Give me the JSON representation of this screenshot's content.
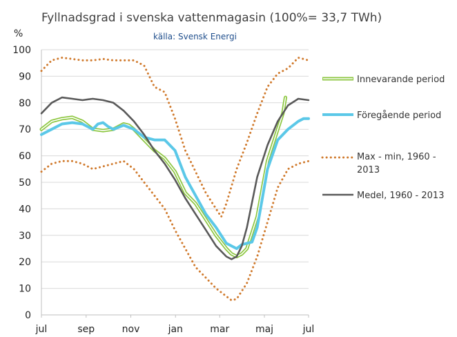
{
  "chart_data": {
    "type": "line",
    "title": "Fyllnadsgrad i svenska vattenmagasin (100%= 33,7 TWh)",
    "subtitle": "källa: Svensk Energi",
    "ylabel": "%",
    "xlabel": "",
    "ylim": [
      0,
      100
    ],
    "yticks": [
      0,
      10,
      20,
      30,
      40,
      50,
      60,
      70,
      80,
      90,
      100
    ],
    "grid": true,
    "x_categories": [
      "jul",
      "sep",
      "nov",
      "jan",
      "mar",
      "maj",
      "jul"
    ],
    "x_unit": "week index (0 = start of July, 52 = end of June)",
    "xlim": [
      0,
      52
    ],
    "x_tick_positions": [
      0,
      8.7,
      17.4,
      26.1,
      34.7,
      43.4,
      52
    ],
    "legend_position": "right",
    "series": [
      {
        "name": "Innevarande period",
        "color": "#8cc63f",
        "style": "double",
        "x": [
          0,
          2,
          4,
          6,
          8,
          10,
          12,
          14,
          16,
          17,
          18,
          20,
          22,
          24,
          26,
          28,
          30,
          32,
          34,
          36,
          37,
          38,
          39,
          40,
          42,
          44,
          46,
          47,
          47.5
        ],
        "y": [
          70,
          73,
          74,
          74.5,
          73,
          70,
          69.5,
          70,
          72,
          71.5,
          70,
          66,
          62,
          59,
          54,
          46,
          42,
          36,
          30,
          25,
          23,
          22,
          23,
          25,
          37,
          58,
          70,
          76,
          82
        ]
      },
      {
        "name": "Föregående period",
        "color": "#5bc8e8",
        "style": "solid",
        "x": [
          0,
          2,
          4,
          6,
          8,
          10,
          11,
          12,
          13,
          14,
          16,
          18,
          20,
          22,
          24,
          26,
          28,
          30,
          32,
          34,
          36,
          38,
          39,
          40,
          41,
          42,
          44,
          46,
          48,
          50,
          51,
          52
        ],
        "y": [
          68,
          70,
          72,
          72.5,
          72,
          70,
          72,
          72.5,
          71,
          70,
          71.5,
          70,
          67,
          66,
          66,
          62,
          52,
          45,
          38,
          33,
          27,
          25,
          26.5,
          27,
          27.5,
          33,
          55,
          66,
          70,
          73,
          74,
          74
        ]
      },
      {
        "name": "Max - min, 1960 - 2013",
        "color": "#d07a2d",
        "style": "dotted",
        "x": [
          0,
          2,
          4,
          6,
          8,
          10,
          12,
          14,
          16,
          18,
          20,
          22,
          24,
          26,
          28,
          30,
          32,
          34,
          35,
          36,
          38,
          40,
          42,
          44,
          46,
          48,
          50,
          52
        ],
        "y": [
          92,
          96,
          97,
          96.5,
          96,
          96,
          96.5,
          96,
          96,
          96,
          94,
          86,
          84,
          74,
          62,
          54,
          46,
          40,
          37,
          42,
          55,
          65,
          76,
          86,
          91,
          93,
          97,
          96
        ]
      },
      {
        "name": "Max - min, 1960 - 2013 (min)",
        "color": "#d07a2d",
        "style": "dotted",
        "legend": false,
        "x": [
          0,
          2,
          4,
          6,
          8,
          10,
          12,
          14,
          16,
          18,
          20,
          22,
          24,
          26,
          28,
          30,
          32,
          34,
          36,
          37,
          38,
          40,
          42,
          44,
          46,
          48,
          50,
          52
        ],
        "y": [
          54,
          57,
          58,
          58,
          57,
          55,
          56,
          57,
          58,
          55,
          50,
          45,
          40,
          32,
          25,
          18,
          14,
          10,
          7,
          5.5,
          6,
          12,
          22,
          35,
          48,
          55,
          57,
          58
        ]
      },
      {
        "name": "Medel, 1960 - 2013",
        "color": "#595959",
        "style": "solid",
        "x": [
          0,
          2,
          4,
          6,
          8,
          10,
          12,
          14,
          16,
          18,
          20,
          22,
          24,
          26,
          28,
          30,
          32,
          34,
          36,
          37,
          38,
          39,
          40,
          42,
          44,
          46,
          48,
          50,
          52
        ],
        "y": [
          76,
          80,
          82,
          81.5,
          81,
          81.5,
          81,
          80,
          77,
          73,
          68,
          62,
          57,
          51,
          44,
          38,
          32,
          26,
          22,
          21,
          22,
          26,
          33,
          52,
          64,
          73,
          79,
          81.5,
          81
        ]
      }
    ]
  }
}
